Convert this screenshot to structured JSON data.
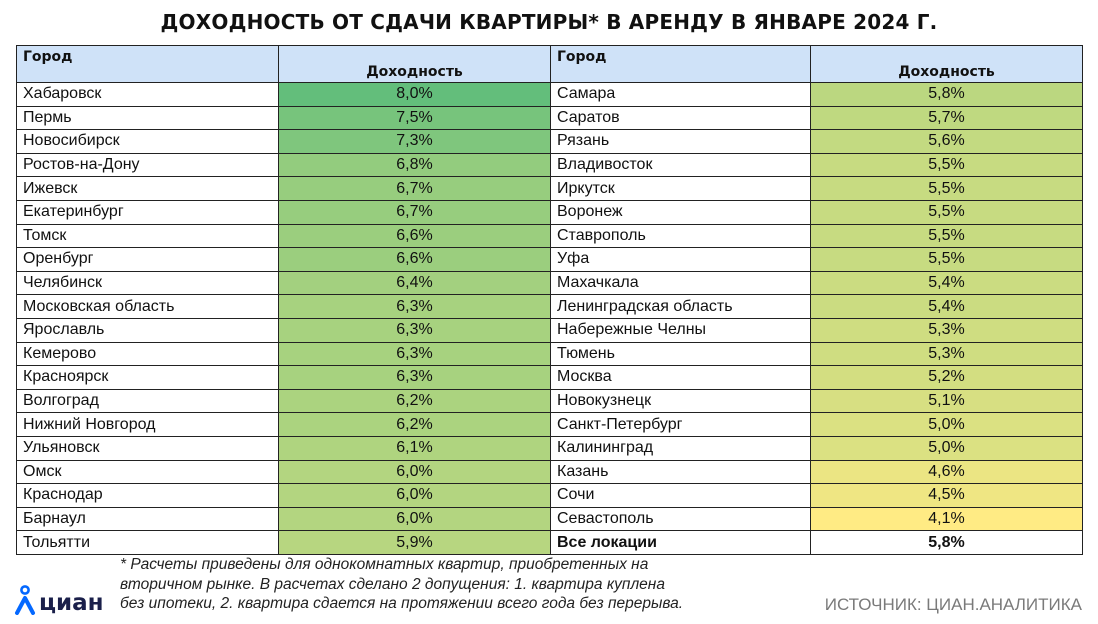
{
  "title": "ДОХОДНОСТЬ ОТ СДАЧИ КВАРТИРЫ* В АРЕНДУ В ЯНВАРЕ 2024 Г.",
  "colors": {
    "header_bg": "#cfe2f8",
    "scale_max": "#63be7b",
    "scale_min": "#ffeb84",
    "logo_blue": "#0468ff"
  },
  "chart_data": {
    "type": "table",
    "title": "ДОХОДНОСТЬ ОТ СДАЧИ КВАРТИРЫ* В АРЕНДУ В ЯНВАРЕ 2024 Г.",
    "columns": [
      "Город",
      "Доходность",
      "Город",
      "Доходность"
    ],
    "left": [
      {
        "city": "Хабаровск",
        "value": "8,0%"
      },
      {
        "city": "Пермь",
        "value": "7,5%"
      },
      {
        "city": "Новосибирск",
        "value": "7,3%"
      },
      {
        "city": "Ростов-на-Дону",
        "value": "6,8%"
      },
      {
        "city": "Ижевск",
        "value": "6,7%"
      },
      {
        "city": "Екатеринбург",
        "value": "6,7%"
      },
      {
        "city": "Томск",
        "value": "6,6%"
      },
      {
        "city": "Оренбург",
        "value": "6,6%"
      },
      {
        "city": "Челябинск",
        "value": "6,4%"
      },
      {
        "city": "Московская область",
        "value": "6,3%"
      },
      {
        "city": "Ярославль",
        "value": "6,3%"
      },
      {
        "city": "Кемерово",
        "value": "6,3%"
      },
      {
        "city": "Красноярск",
        "value": "6,3%"
      },
      {
        "city": "Волгоград",
        "value": "6,2%"
      },
      {
        "city": "Нижний Новгород",
        "value": "6,2%"
      },
      {
        "city": "Ульяновск",
        "value": "6,1%"
      },
      {
        "city": "Омск",
        "value": "6,0%"
      },
      {
        "city": "Краснодар",
        "value": "6,0%"
      },
      {
        "city": "Барнаул",
        "value": "6,0%"
      },
      {
        "city": "Тольятти",
        "value": "5,9%"
      }
    ],
    "right": [
      {
        "city": "Самара",
        "value": "5,8%"
      },
      {
        "city": "Саратов",
        "value": "5,7%"
      },
      {
        "city": "Рязань",
        "value": "5,6%"
      },
      {
        "city": "Владивосток",
        "value": "5,5%"
      },
      {
        "city": "Иркутск",
        "value": "5,5%"
      },
      {
        "city": "Воронеж",
        "value": "5,5%"
      },
      {
        "city": "Ставрополь",
        "value": "5,5%"
      },
      {
        "city": "Уфа",
        "value": "5,5%"
      },
      {
        "city": "Махачкала",
        "value": "5,4%"
      },
      {
        "city": "Ленинградская область",
        "value": "5,4%"
      },
      {
        "city": "Набережные Челны",
        "value": "5,3%"
      },
      {
        "city": "Тюмень",
        "value": "5,3%"
      },
      {
        "city": "Москва",
        "value": "5,2%"
      },
      {
        "city": "Новокузнецк",
        "value": "5,1%"
      },
      {
        "city": "Санкт-Петербург",
        "value": "5,0%"
      },
      {
        "city": "Калининград",
        "value": "5,0%"
      },
      {
        "city": "Казань",
        "value": "4,6%"
      },
      {
        "city": "Сочи",
        "value": "4,5%"
      },
      {
        "city": "Севастополь",
        "value": "4,1%"
      },
      {
        "city": "Все локации",
        "value": "5,8%",
        "total": true
      }
    ]
  },
  "footnote": [
    "* Расчеты приведены для однокомнатных квартир, приобретенных на",
    "вторичном рынке. В расчетах сделано 2 допущения: 1. квартира куплена",
    "без ипотеки, 2. квартира сдается на протяжении всего года без перерыва."
  ],
  "logo": {
    "text": "циан",
    "icon": "person-pin-icon"
  },
  "source": "ИСТОЧНИК: ЦИАН.АНАЛИТИКА"
}
